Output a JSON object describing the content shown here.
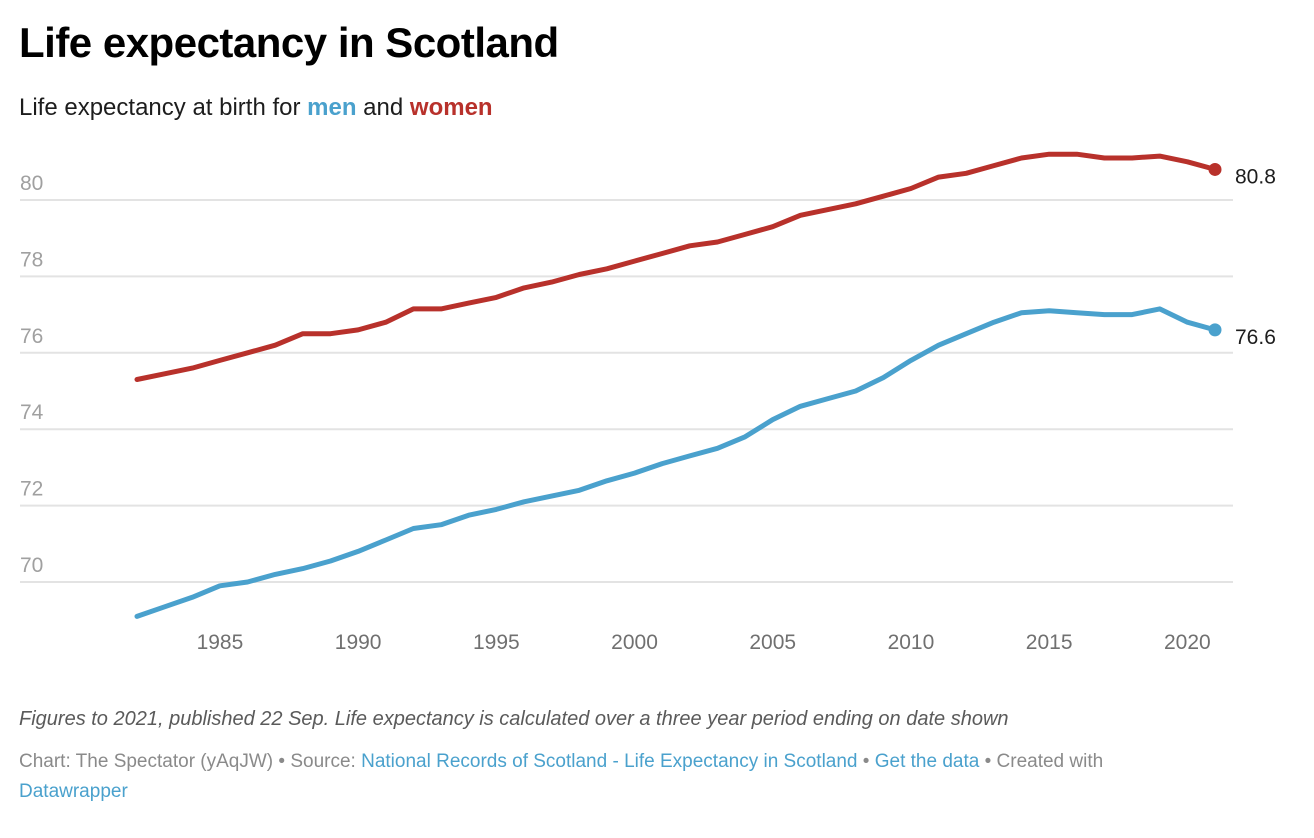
{
  "header": {
    "title": "Life expectancy in Scotland",
    "subtitle_prefix": "Life expectancy at birth for ",
    "subtitle_men": "men",
    "subtitle_and": " and ",
    "subtitle_women": "women"
  },
  "colors": {
    "men": "#4aa1cd",
    "women": "#b8312b"
  },
  "chart_data": {
    "type": "line",
    "title": "Life expectancy in Scotland",
    "subtitle": "Life expectancy at birth for men and women",
    "xlabel": "",
    "ylabel": "",
    "x": [
      1982,
      1983,
      1984,
      1985,
      1986,
      1987,
      1988,
      1989,
      1990,
      1991,
      1992,
      1993,
      1994,
      1995,
      1996,
      1997,
      1998,
      1999,
      2000,
      2001,
      2002,
      2003,
      2004,
      2005,
      2006,
      2007,
      2008,
      2009,
      2010,
      2011,
      2012,
      2013,
      2014,
      2015,
      2016,
      2017,
      2018,
      2019,
      2020,
      2021
    ],
    "xlim": [
      1982,
      2021
    ],
    "xticks": [
      1985,
      1990,
      1995,
      2000,
      2005,
      2010,
      2015,
      2020
    ],
    "xtick_labels": [
      "1985",
      "1990",
      "1995",
      "2000",
      "2005",
      "2010",
      "2015",
      "2020"
    ],
    "ylim": [
      69,
      81.5
    ],
    "yticks": [
      70,
      72,
      74,
      76,
      78,
      80
    ],
    "ytick_labels": [
      "70",
      "72",
      "74",
      "76",
      "78",
      "80"
    ],
    "grid": true,
    "legend": "inline-subtitle",
    "series": [
      {
        "name": "women",
        "color": "#b8312b",
        "values": [
          75.3,
          75.45,
          75.6,
          75.8,
          76.0,
          76.2,
          76.5,
          76.5,
          76.6,
          76.8,
          77.15,
          77.15,
          77.3,
          77.45,
          77.7,
          77.85,
          78.05,
          78.2,
          78.4,
          78.6,
          78.8,
          78.9,
          79.1,
          79.3,
          79.6,
          79.75,
          79.9,
          80.1,
          80.3,
          80.6,
          80.7,
          80.9,
          81.1,
          81.2,
          81.2,
          81.1,
          81.1,
          81.15,
          81.0,
          80.8
        ],
        "end_label": "80.8"
      },
      {
        "name": "men",
        "color": "#4aa1cd",
        "values": [
          69.1,
          69.35,
          69.6,
          69.9,
          70.0,
          70.2,
          70.35,
          70.55,
          70.8,
          71.1,
          71.4,
          71.5,
          71.75,
          71.9,
          72.1,
          72.25,
          72.4,
          72.65,
          72.85,
          73.1,
          73.3,
          73.5,
          73.8,
          74.25,
          74.6,
          74.8,
          75.0,
          75.35,
          75.8,
          76.2,
          76.5,
          76.8,
          77.05,
          77.1,
          77.05,
          77.0,
          77.0,
          77.15,
          76.8,
          76.6
        ],
        "end_label": "76.6"
      }
    ]
  },
  "footer": {
    "notes": "Figures to 2021, published 22 Sep. Life expectancy is calculated over a three year period ending on date shown",
    "chart_credit": "Chart: The Spectator (yAqJW)",
    "separator": " • ",
    "source_label": "Source: ",
    "source_link": "National Records of Scotland - Life Expectancy in Scotland",
    "get_data_link": "Get the data",
    "created_with": "Created with ",
    "datawrapper_link": "Datawrapper"
  }
}
